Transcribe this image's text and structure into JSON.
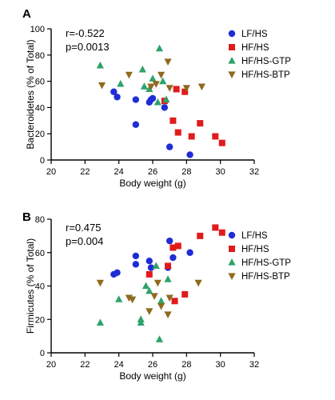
{
  "chart_data": [
    {
      "type": "scatter",
      "panel_label": "A",
      "title": "",
      "xlabel": "Body weight (g)",
      "ylabel": "Bacteroidetes (% of Total)",
      "xlim": [
        20,
        32
      ],
      "ylim": [
        0,
        100
      ],
      "xticks": [
        20,
        22,
        24,
        26,
        28,
        30,
        32
      ],
      "yticks": [
        0,
        20,
        40,
        60,
        80,
        100
      ],
      "grid": false,
      "legend_position": "top-right",
      "annotations": [
        "r=-0.522",
        "p=0.0013"
      ],
      "series": [
        {
          "name": "LF/HS",
          "marker": "circle",
          "color": "#1f2dd6",
          "points": [
            [
              23.7,
              52
            ],
            [
              23.9,
              48
            ],
            [
              25.0,
              46
            ],
            [
              25.0,
              27
            ],
            [
              25.8,
              44
            ],
            [
              25.9,
              46
            ],
            [
              26.0,
              47
            ],
            [
              26.7,
              40
            ],
            [
              27.0,
              10
            ],
            [
              28.2,
              4
            ]
          ]
        },
        {
          "name": "HF/HS",
          "marker": "square",
          "color": "#e01b1b",
          "points": [
            [
              26.7,
              45
            ],
            [
              27.2,
              30
            ],
            [
              27.4,
              54
            ],
            [
              27.5,
              21
            ],
            [
              27.9,
              52
            ],
            [
              28.3,
              18
            ],
            [
              28.8,
              28
            ],
            [
              29.7,
              18
            ],
            [
              30.1,
              13
            ]
          ]
        },
        {
          "name": "HF/HS-GTP",
          "marker": "triangle-up",
          "color": "#2ea36a",
          "points": [
            [
              22.9,
              72
            ],
            [
              24.1,
              58
            ],
            [
              25.4,
              69
            ],
            [
              25.5,
              56
            ],
            [
              25.8,
              54
            ],
            [
              26.0,
              62
            ],
            [
              26.3,
              44
            ],
            [
              26.4,
              85
            ],
            [
              26.6,
              60
            ],
            [
              26.8,
              46
            ]
          ]
        },
        {
          "name": "HF/HS-BTP",
          "marker": "triangle-down",
          "color": "#8f6a1f",
          "points": [
            [
              23.0,
              57
            ],
            [
              24.6,
              65
            ],
            [
              25.9,
              56
            ],
            [
              26.2,
              58
            ],
            [
              26.5,
              65
            ],
            [
              26.9,
              75
            ],
            [
              27.0,
              55
            ],
            [
              28.0,
              55
            ],
            [
              28.9,
              56
            ]
          ]
        }
      ]
    },
    {
      "type": "scatter",
      "panel_label": "B",
      "title": "",
      "xlabel": "Body weight (g)",
      "ylabel": "Firmicutes (% of Total)",
      "xlim": [
        20,
        32
      ],
      "ylim": [
        0,
        80
      ],
      "xticks": [
        20,
        22,
        24,
        26,
        28,
        30,
        32
      ],
      "yticks": [
        0,
        20,
        40,
        60,
        80
      ],
      "grid": false,
      "legend_position": "top-right",
      "annotations": [
        "r=0.475",
        "p=0.004"
      ],
      "series": [
        {
          "name": "LF/HS",
          "marker": "circle",
          "color": "#1f2dd6",
          "points": [
            [
              23.7,
              47
            ],
            [
              23.9,
              48
            ],
            [
              25.0,
              58
            ],
            [
              25.0,
              53
            ],
            [
              25.8,
              55
            ],
            [
              25.9,
              51
            ],
            [
              26.9,
              51
            ],
            [
              27.0,
              67
            ],
            [
              27.2,
              57
            ],
            [
              28.2,
              60
            ]
          ]
        },
        {
          "name": "HF/HS",
          "marker": "square",
          "color": "#e01b1b",
          "points": [
            [
              25.8,
              47
            ],
            [
              26.9,
              52
            ],
            [
              27.2,
              63
            ],
            [
              27.3,
              31
            ],
            [
              27.5,
              64
            ],
            [
              27.9,
              35
            ],
            [
              28.8,
              70
            ],
            [
              29.7,
              75
            ],
            [
              30.1,
              72
            ]
          ]
        },
        {
          "name": "HF/HS-GTP",
          "marker": "triangle-up",
          "color": "#2ea36a",
          "points": [
            [
              22.9,
              18
            ],
            [
              24.0,
              32
            ],
            [
              25.3,
              20
            ],
            [
              25.3,
              18
            ],
            [
              25.6,
              40
            ],
            [
              25.8,
              37
            ],
            [
              26.2,
              52
            ],
            [
              26.4,
              8
            ],
            [
              26.5,
              31
            ],
            [
              26.9,
              44
            ]
          ]
        },
        {
          "name": "HF/HS-BTP",
          "marker": "triangle-down",
          "color": "#8f6a1f",
          "points": [
            [
              22.9,
              42
            ],
            [
              24.6,
              33
            ],
            [
              24.8,
              32
            ],
            [
              25.8,
              25
            ],
            [
              26.1,
              34
            ],
            [
              26.3,
              42
            ],
            [
              26.5,
              28
            ],
            [
              26.9,
              23
            ],
            [
              27.0,
              33
            ],
            [
              28.7,
              42
            ]
          ]
        }
      ]
    }
  ]
}
